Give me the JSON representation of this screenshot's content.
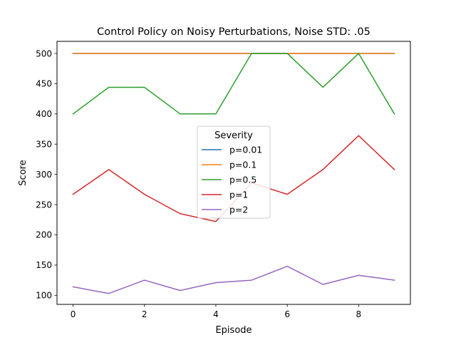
{
  "chart_data": {
    "type": "line",
    "title": "Control Policy on Noisy Perturbations, Noise STD: .05",
    "xlabel": "Episode",
    "ylabel": "Score",
    "x": [
      0,
      1,
      2,
      3,
      4,
      5,
      6,
      7,
      8,
      9
    ],
    "xlim": [
      -0.45,
      9.45
    ],
    "ylim": [
      85,
      520
    ],
    "xticks": [
      0,
      2,
      4,
      6,
      8
    ],
    "yticks": [
      100,
      150,
      200,
      250,
      300,
      350,
      400,
      450,
      500
    ],
    "grid": false,
    "legend": {
      "title": "Severity",
      "placement": "center"
    },
    "series": [
      {
        "name": "p=0.01",
        "color": "#1f77b4",
        "values": [
          500,
          500,
          500,
          500,
          500,
          500,
          500,
          500,
          500,
          500
        ]
      },
      {
        "name": "p=0.1",
        "color": "#ff7f0e",
        "values": [
          500,
          500,
          500,
          500,
          500,
          500,
          500,
          500,
          500,
          500
        ]
      },
      {
        "name": "p=0.5",
        "color": "#2ca02c",
        "values": [
          400,
          444,
          444,
          400,
          400,
          500,
          500,
          444,
          500,
          400
        ]
      },
      {
        "name": "p=1",
        "color": "#d62728",
        "values": [
          267,
          308,
          267,
          235,
          222,
          286,
          267,
          308,
          364,
          308
        ]
      },
      {
        "name": "p=2",
        "color": "#9467bd",
        "values": [
          114,
          103,
          125,
          108,
          121,
          125,
          148,
          118,
          133,
          125
        ]
      }
    ]
  }
}
